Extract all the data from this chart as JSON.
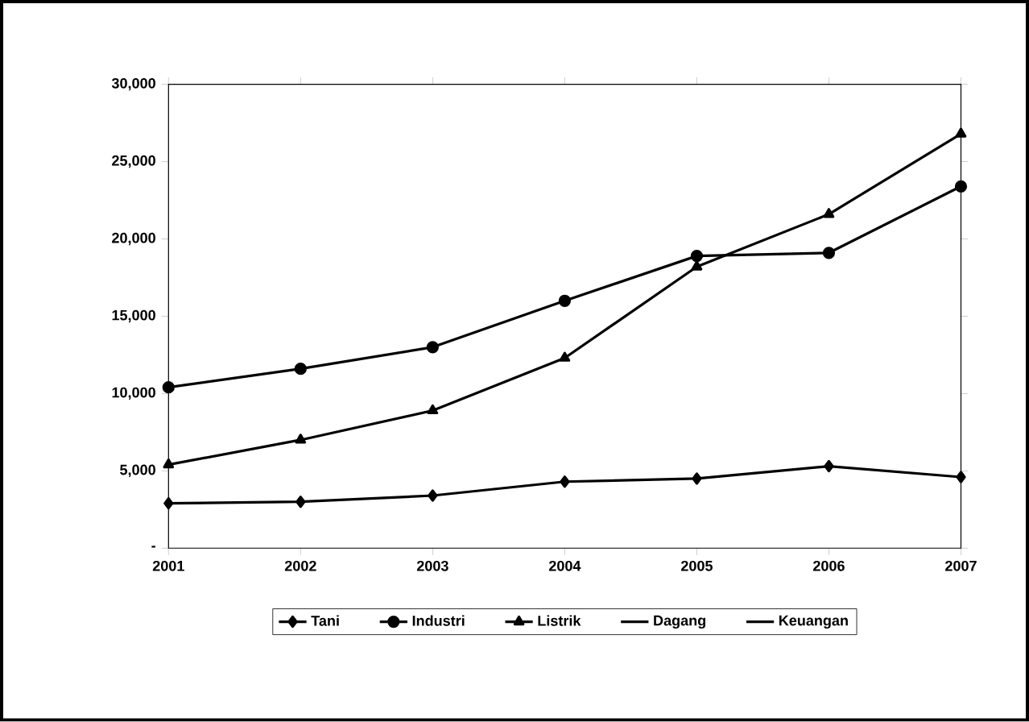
{
  "chart_data": {
    "type": "line",
    "categories": [
      "2001",
      "2002",
      "2003",
      "2004",
      "2005",
      "2006",
      "2007"
    ],
    "series": [
      {
        "name": "Tani",
        "color": "#000000",
        "marker": "diamond",
        "values": [
          2900,
          3000,
          3400,
          4300,
          4500,
          5300,
          4600
        ]
      },
      {
        "name": "Industri",
        "color": "#000000",
        "marker": "circle",
        "values": [
          10400,
          11600,
          13000,
          16000,
          18900,
          19100,
          23400
        ]
      },
      {
        "name": "Listrik",
        "color": "#000000",
        "marker": "triangle",
        "values": [
          5400,
          7000,
          8900,
          12300,
          18200,
          21600,
          26800
        ]
      },
      {
        "name": "Dagang",
        "values": [
          null,
          null,
          null,
          null,
          null,
          null,
          null
        ]
      },
      {
        "name": "Keuangan",
        "values": [
          null,
          null,
          null,
          null,
          null,
          null,
          null
        ]
      }
    ],
    "ylim": [
      0,
      30000
    ],
    "yticks": [
      {
        "value": 0,
        "label": "-"
      },
      {
        "value": 5000,
        "label": "5,000"
      },
      {
        "value": 10000,
        "label": "10,000"
      },
      {
        "value": 15000,
        "label": "15,000"
      },
      {
        "value": 20000,
        "label": "20,000"
      },
      {
        "value": 25000,
        "label": "25,000"
      },
      {
        "value": 30000,
        "label": "30,000"
      }
    ],
    "legend": "bottom",
    "grid": false
  }
}
